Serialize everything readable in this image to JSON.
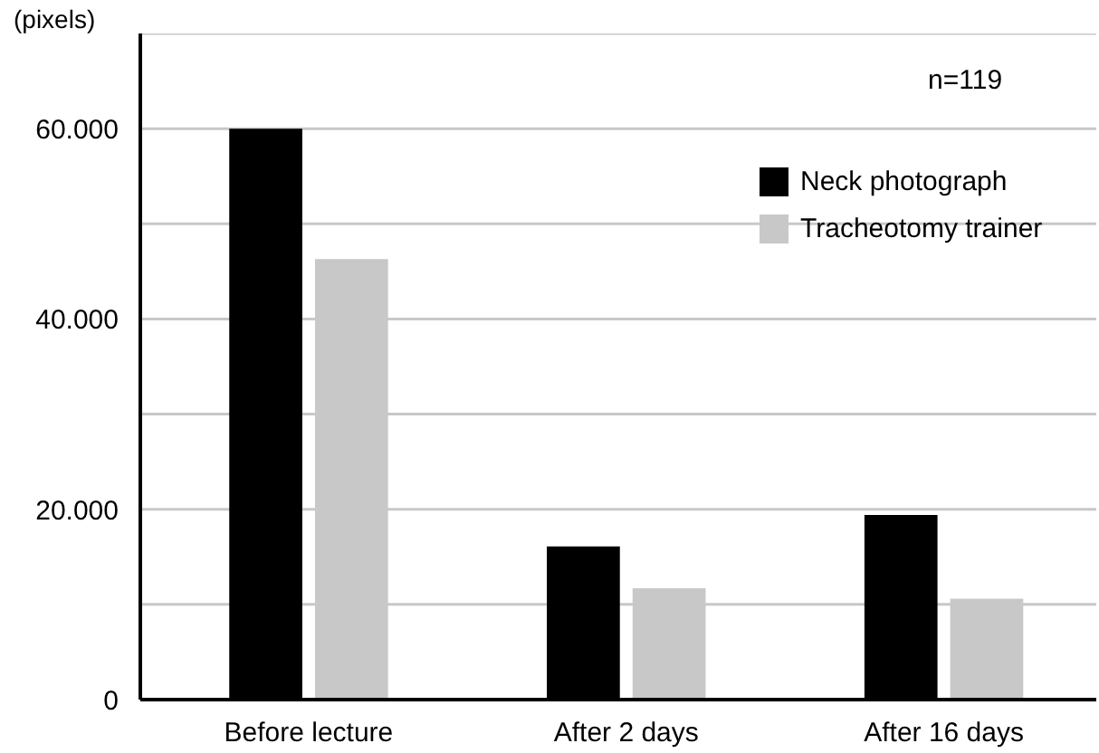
{
  "chart_data": {
    "type": "bar",
    "ylabel": "(pixels)",
    "categories": [
      "Before lecture",
      "After 2 days",
      "After 16 days"
    ],
    "series": [
      {
        "name": "Neck photograph",
        "color": "#000000",
        "values": [
          60000,
          16100,
          19400
        ]
      },
      {
        "name": "Tracheotomy trainer",
        "color": "#c8c8c8",
        "values": [
          46300,
          11700,
          10600
        ]
      }
    ],
    "ylim": [
      0,
      70000
    ],
    "yticks": [
      0,
      {
        "value": 10000,
        "label": null
      },
      {
        "value": 20000,
        "label": "20.000"
      },
      {
        "value": 30000,
        "label": null
      },
      {
        "value": 40000,
        "label": "40.000"
      },
      {
        "value": 50000,
        "label": null
      },
      {
        "value": 60000,
        "label": "60.000"
      },
      {
        "value": 70000,
        "label": null
      }
    ],
    "grid": "y",
    "legend": "top right",
    "annotations": [
      "n=119"
    ]
  }
}
